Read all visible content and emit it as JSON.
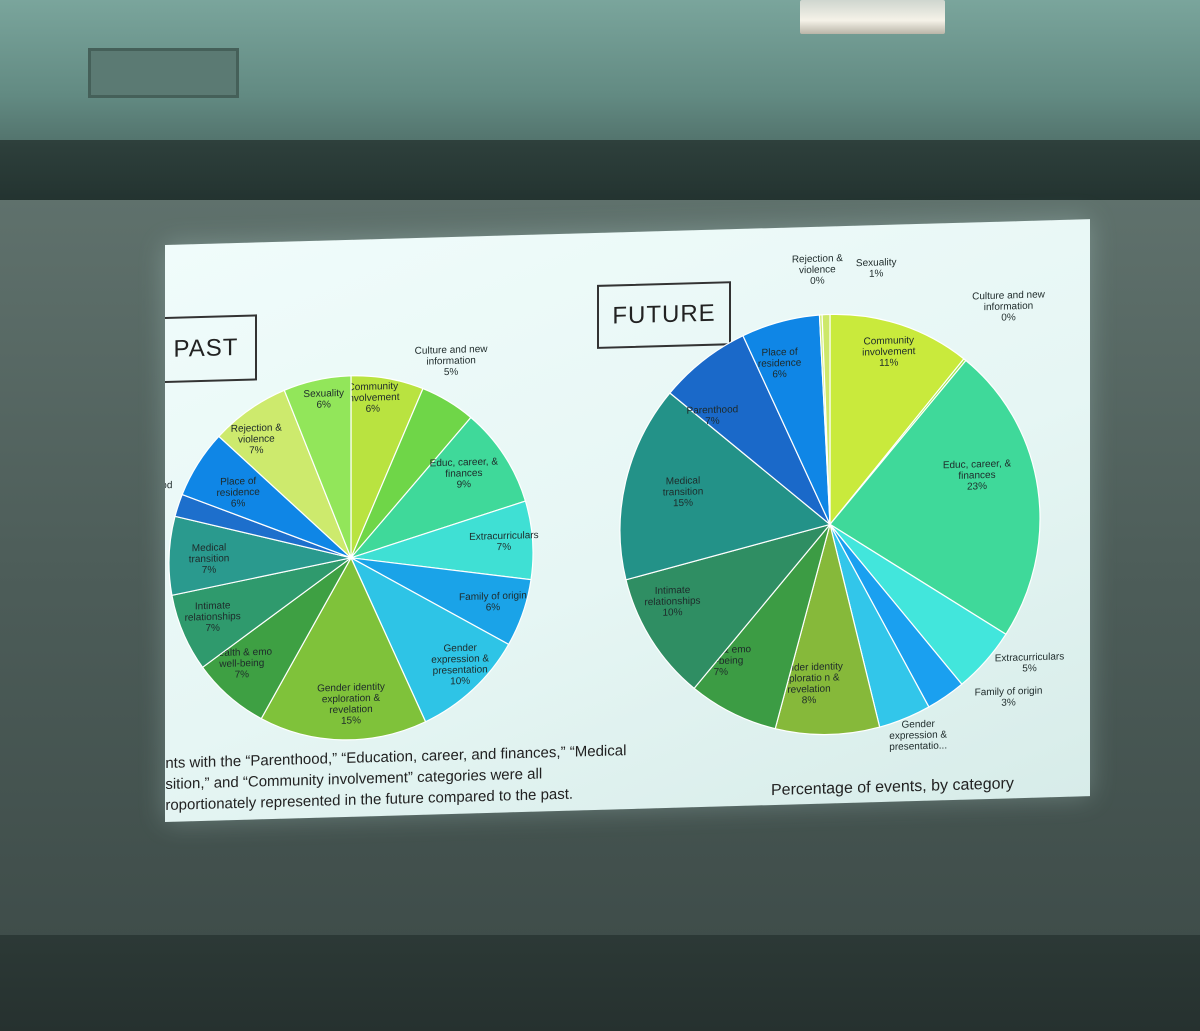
{
  "slide": {
    "caption_lines": [
      "ents with the “Parenthood,” “Education, career, and finances,” “Medical",
      "nsition,” and “Community involvement” categories were all",
      "proportionately represented in the future compared to the past."
    ],
    "subcaption": "Percentage of events, by category"
  },
  "chart_data": [
    {
      "type": "pie",
      "title": "PAST",
      "colors": {
        "community": "#b9e340",
        "culture": "#6fd648",
        "educ": "#3fd99a",
        "extracurricular": "#3fe0d4",
        "family": "#1aa3e8",
        "gender_expr": "#2ec4e6",
        "gender_identity": "#7fc23a",
        "health": "#3ea043",
        "intimate": "#2f9a6d",
        "medical": "#2a9a8e",
        "navy": "#1d6fcc",
        "place": "#0f86e6",
        "rejection": "#cdea6d",
        "sexuality": "#92e65a"
      },
      "slices": [
        {
          "label": "Community involvement",
          "value_label": "6%",
          "value": 6.5,
          "color_key": "community"
        },
        {
          "label": "Culture and new information",
          "value_label": "5%",
          "value": 5,
          "color_key": "culture"
        },
        {
          "label": "Educ, career, & finances",
          "value_label": "9%",
          "value": 9,
          "color_key": "educ"
        },
        {
          "label": "Extracurriculars",
          "value_label": "7%",
          "value": 7,
          "color_key": "extracurricular"
        },
        {
          "label": "Family of origin",
          "value_label": "6%",
          "value": 6,
          "color_key": "family"
        },
        {
          "label": "Gender expression & presentation",
          "value_label": "10%",
          "value": 10,
          "color_key": "gender_expr"
        },
        {
          "label": "Gender identity exploration & revelation",
          "value_label": "15%",
          "value": 15,
          "color_key": "gender_identity"
        },
        {
          "label": "Health & emo well-being",
          "value_label": "7%",
          "value": 7,
          "color_key": "health"
        },
        {
          "label": "Intimate relationships",
          "value_label": "7%",
          "value": 7,
          "color_key": "intimate"
        },
        {
          "label": "Medical transition",
          "value_label": "7%",
          "value": 7,
          "color_key": "medical"
        },
        {
          "label": "thood",
          "value_label": "%",
          "value": 2,
          "color_key": "navy"
        },
        {
          "label": "Place of residence",
          "value_label": "6%",
          "value": 6,
          "color_key": "place"
        },
        {
          "label": "Rejection & violence",
          "value_label": "7%",
          "value": 7,
          "color_key": "rejection"
        },
        {
          "label": "Sexuality",
          "value_label": "6%",
          "value": 6,
          "color_key": "sexuality"
        }
      ]
    },
    {
      "type": "pie",
      "title": "FUTURE",
      "colors": {
        "community": "#c9ea3c",
        "culture": "#9fe54a",
        "educ": "#3fd99a",
        "extracurricular": "#42e6dc",
        "family": "#1aa0f0",
        "gender_expr": "#32c6ea",
        "gender_identity": "#86b93a",
        "health": "#3c9c44",
        "intimate": "#2f8e63",
        "medical": "#239288",
        "parenthood": "#1a69c9",
        "place": "#0f86e6",
        "rejection": "#cdea6d",
        "sexuality": "#cde86a"
      },
      "slices": [
        {
          "label": "Community involvement",
          "value_label": "11%",
          "value": 11,
          "color_key": "community"
        },
        {
          "label": "Culture and new information",
          "value_label": "0%",
          "value": 0.2,
          "color_key": "culture"
        },
        {
          "label": "Educ, career, & finances",
          "value_label": "23%",
          "value": 23,
          "color_key": "educ"
        },
        {
          "label": "Extracurriculars",
          "value_label": "5%",
          "value": 5,
          "color_key": "extracurricular"
        },
        {
          "label": "Family of origin",
          "value_label": "3%",
          "value": 3,
          "color_key": "family"
        },
        {
          "label": "Gender expression & presentatio...",
          "value_label": "",
          "value": 4,
          "color_key": "gender_expr"
        },
        {
          "label": "Gender identity exploratio n & revelation",
          "value_label": "8%",
          "value": 8,
          "color_key": "gender_identity"
        },
        {
          "label": "Health & emo well-being",
          "value_label": "7%",
          "value": 7,
          "color_key": "health"
        },
        {
          "label": "Intimate relationships",
          "value_label": "10%",
          "value": 10,
          "color_key": "intimate"
        },
        {
          "label": "Medical transition",
          "value_label": "15%",
          "value": 15,
          "color_key": "medical"
        },
        {
          "label": "Parenthood",
          "value_label": "7%",
          "value": 7,
          "color_key": "parenthood"
        },
        {
          "label": "Place of residence",
          "value_label": "6%",
          "value": 6,
          "color_key": "place"
        },
        {
          "label": "Rejection & violence",
          "value_label": "0%",
          "value": 0.2,
          "color_key": "rejection"
        },
        {
          "label": "Sexuality",
          "value_label": "1%",
          "value": 0.6,
          "color_key": "sexuality"
        }
      ]
    }
  ]
}
